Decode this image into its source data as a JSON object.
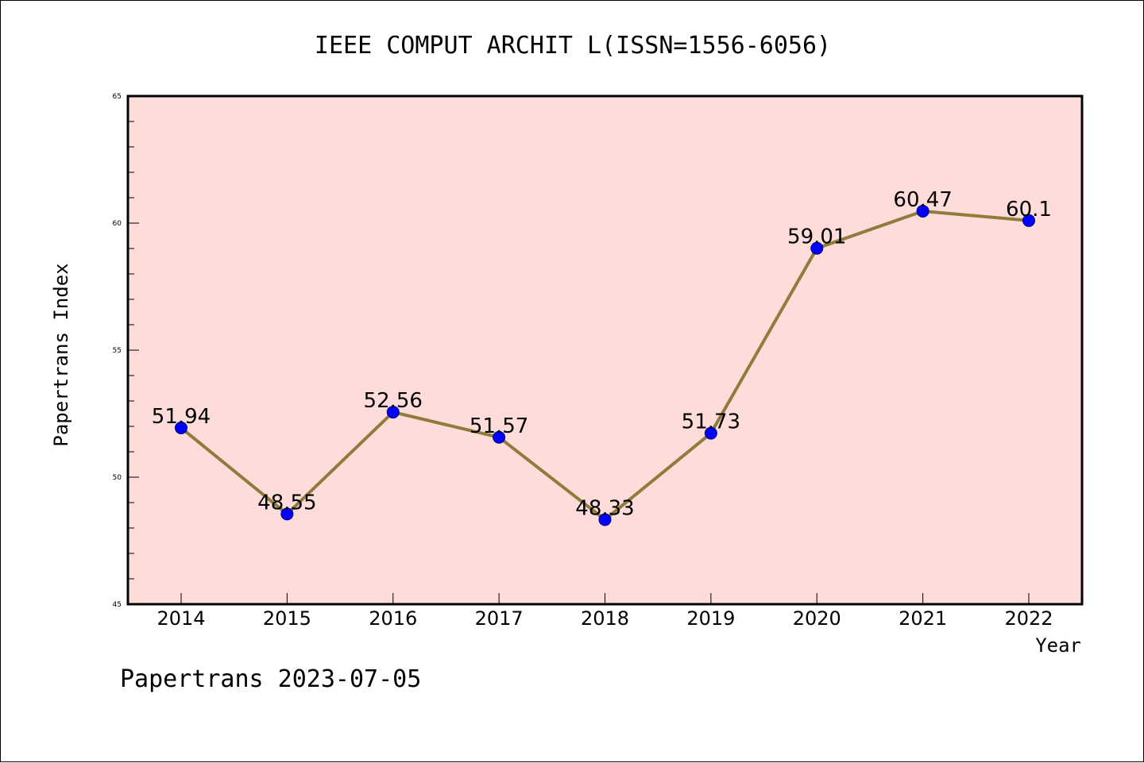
{
  "chart_data": {
    "type": "line",
    "title": "IEEE COMPUT ARCHIT L(ISSN=1556-6056)",
    "xlabel": "Year",
    "ylabel": "Papertrans Index",
    "categories": [
      "2014",
      "2015",
      "2016",
      "2017",
      "2018",
      "2019",
      "2020",
      "2021",
      "2022"
    ],
    "series": [
      {
        "values": [
          51.94,
          48.55,
          52.56,
          51.57,
          48.33,
          51.73,
          59.01,
          60.47,
          60.1
        ],
        "labels": [
          "51.94",
          "48.55",
          "52.56",
          "51.57",
          "48.33",
          "51.73",
          "59.01",
          "60.47",
          "60.1"
        ]
      }
    ],
    "ylim": [
      45,
      65
    ],
    "yticks": [
      "45",
      "50",
      "55",
      "60",
      "65"
    ],
    "grid": false,
    "line_color": "#8f7c3c",
    "marker_color": "#0000ff",
    "plot_background": "#fddcd9"
  },
  "footer": "Papertrans 2023-07-05"
}
